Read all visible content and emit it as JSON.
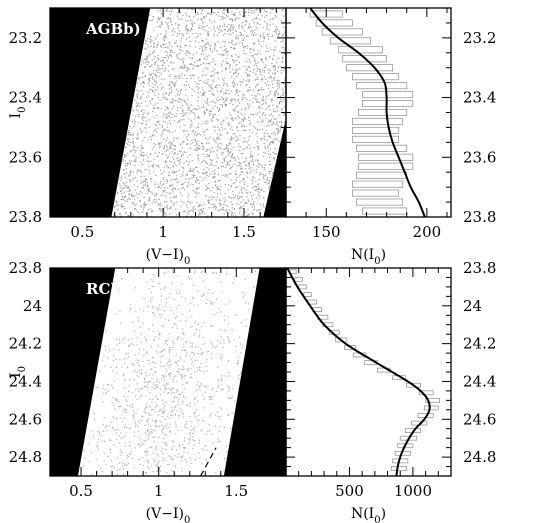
{
  "chart_data": [
    {
      "type": "scatter",
      "label": "AGBb)",
      "xlabel": "(V−I)",
      "xlabel_sub": "0",
      "ylabel": "I",
      "ylabel_sub": "0",
      "xlim": [
        0.3,
        1.76
      ],
      "ylim": [
        23.1,
        23.8
      ],
      "y_inverted": true,
      "xticks": [
        "0.5",
        "1",
        "1.5"
      ],
      "yticks": [
        "23.2",
        "23.4",
        "23.6",
        "23.8"
      ],
      "selection_bounds": {
        "left_edge": [
          [
            0.68,
            23.8
          ],
          [
            0.92,
            23.1
          ]
        ],
        "right_edge": [
          [
            1.62,
            23.8
          ],
          [
            1.76,
            23.47
          ]
        ]
      },
      "point_color": "#9a9a9a",
      "excluded_color": "#000000"
    },
    {
      "type": "line",
      "label": "",
      "xlabel": "N(I",
      "xlabel_sub": "0",
      "xlabel_end": ")",
      "xlim": [
        130,
        212
      ],
      "ylim": [
        23.1,
        23.8
      ],
      "y_inverted": true,
      "xticks": [
        "150",
        "200"
      ],
      "yticks": [
        "23.2",
        "23.4",
        "23.6",
        "23.8"
      ],
      "series": [
        {
          "y": [
            23.1,
            23.15,
            23.2,
            23.25,
            23.3,
            23.35,
            23.4,
            23.45,
            23.5,
            23.55,
            23.6,
            23.65,
            23.7,
            23.75,
            23.8
          ],
          "x": [
            142,
            148,
            156,
            166,
            174,
            179,
            180,
            180,
            181,
            183,
            186,
            189,
            192,
            196,
            199
          ]
        }
      ],
      "histogram": {
        "bins": [
          [
            23.12,
            142,
            158
          ],
          [
            23.15,
            145,
            163
          ],
          [
            23.18,
            148,
            168
          ],
          [
            23.21,
            152,
            172
          ],
          [
            23.24,
            156,
            178
          ],
          [
            23.27,
            158,
            180
          ],
          [
            23.3,
            160,
            183
          ],
          [
            23.33,
            163,
            186
          ],
          [
            23.36,
            165,
            190
          ],
          [
            23.39,
            168,
            193
          ],
          [
            23.42,
            168,
            193
          ],
          [
            23.45,
            166,
            190
          ],
          [
            23.48,
            163,
            188
          ],
          [
            23.51,
            163,
            186
          ],
          [
            23.54,
            163,
            186
          ],
          [
            23.57,
            165,
            190
          ],
          [
            23.6,
            166,
            193
          ],
          [
            23.63,
            166,
            193
          ],
          [
            23.66,
            165,
            190
          ],
          [
            23.69,
            163,
            188
          ],
          [
            23.72,
            163,
            186
          ],
          [
            23.75,
            165,
            188
          ],
          [
            23.78,
            168,
            190
          ]
        ],
        "color": "#999999"
      }
    },
    {
      "type": "scatter",
      "label": "RC)",
      "xlabel": "(V−I)",
      "xlabel_sub": "0",
      "ylabel": "I",
      "ylabel_sub": "0",
      "xlim": [
        0.3,
        1.82
      ],
      "ylim": [
        23.8,
        24.9
      ],
      "y_inverted": true,
      "xticks": [
        "0.5",
        "1",
        "1.5"
      ],
      "yticks": [
        "23.8",
        "24",
        "24.2",
        "24.4",
        "24.6",
        "24.8"
      ],
      "selection_bounds": {
        "left_edge": [
          [
            0.48,
            24.9
          ],
          [
            0.72,
            23.8
          ]
        ],
        "right_edge": [
          [
            1.42,
            24.9
          ],
          [
            1.65,
            23.8
          ]
        ],
        "dashed_line": [
          [
            1.27,
            24.9
          ],
          [
            1.37,
            24.75
          ]
        ]
      },
      "point_color": "#b0b0b0",
      "excluded_color": "#000000"
    },
    {
      "type": "line",
      "label": "",
      "xlabel": "N(I",
      "xlabel_sub": "0",
      "xlabel_end": ")",
      "xlim": [
        0,
        1300
      ],
      "ylim": [
        23.8,
        24.9
      ],
      "y_inverted": true,
      "xticks": [
        "500",
        "1000"
      ],
      "yticks": [
        "23.8",
        "24",
        "24.2",
        "24.4",
        "24.6",
        "24.8"
      ],
      "series": [
        {
          "y": [
            23.8,
            23.9,
            24.0,
            24.1,
            24.2,
            24.3,
            24.4,
            24.45,
            24.5,
            24.55,
            24.6,
            24.65,
            24.7,
            24.75,
            24.8,
            24.85,
            24.9
          ],
          "x": [
            10,
            90,
            190,
            300,
            470,
            710,
            960,
            1060,
            1120,
            1130,
            1090,
            1020,
            970,
            930,
            900,
            880,
            870
          ]
        }
      ],
      "histogram": {
        "bins": [
          [
            23.82,
            30,
            80
          ],
          [
            23.86,
            70,
            130
          ],
          [
            23.9,
            100,
            160
          ],
          [
            23.94,
            140,
            200
          ],
          [
            23.98,
            170,
            240
          ],
          [
            24.02,
            210,
            280
          ],
          [
            24.06,
            250,
            330
          ],
          [
            24.1,
            290,
            370
          ],
          [
            24.14,
            340,
            420
          ],
          [
            24.18,
            390,
            480
          ],
          [
            24.22,
            460,
            550
          ],
          [
            24.26,
            530,
            630
          ],
          [
            24.3,
            620,
            720
          ],
          [
            24.34,
            720,
            820
          ],
          [
            24.38,
            840,
            940
          ],
          [
            24.42,
            950,
            1060
          ],
          [
            24.46,
            1050,
            1160
          ],
          [
            24.5,
            1100,
            1210
          ],
          [
            24.54,
            1090,
            1200
          ],
          [
            24.58,
            1040,
            1160
          ],
          [
            24.62,
            990,
            1110
          ],
          [
            24.66,
            940,
            1060
          ],
          [
            24.7,
            900,
            1030
          ],
          [
            24.74,
            880,
            1000
          ],
          [
            24.78,
            860,
            980
          ],
          [
            24.82,
            840,
            960
          ],
          [
            24.86,
            830,
            950
          ]
        ],
        "color": "#999999"
      }
    }
  ]
}
